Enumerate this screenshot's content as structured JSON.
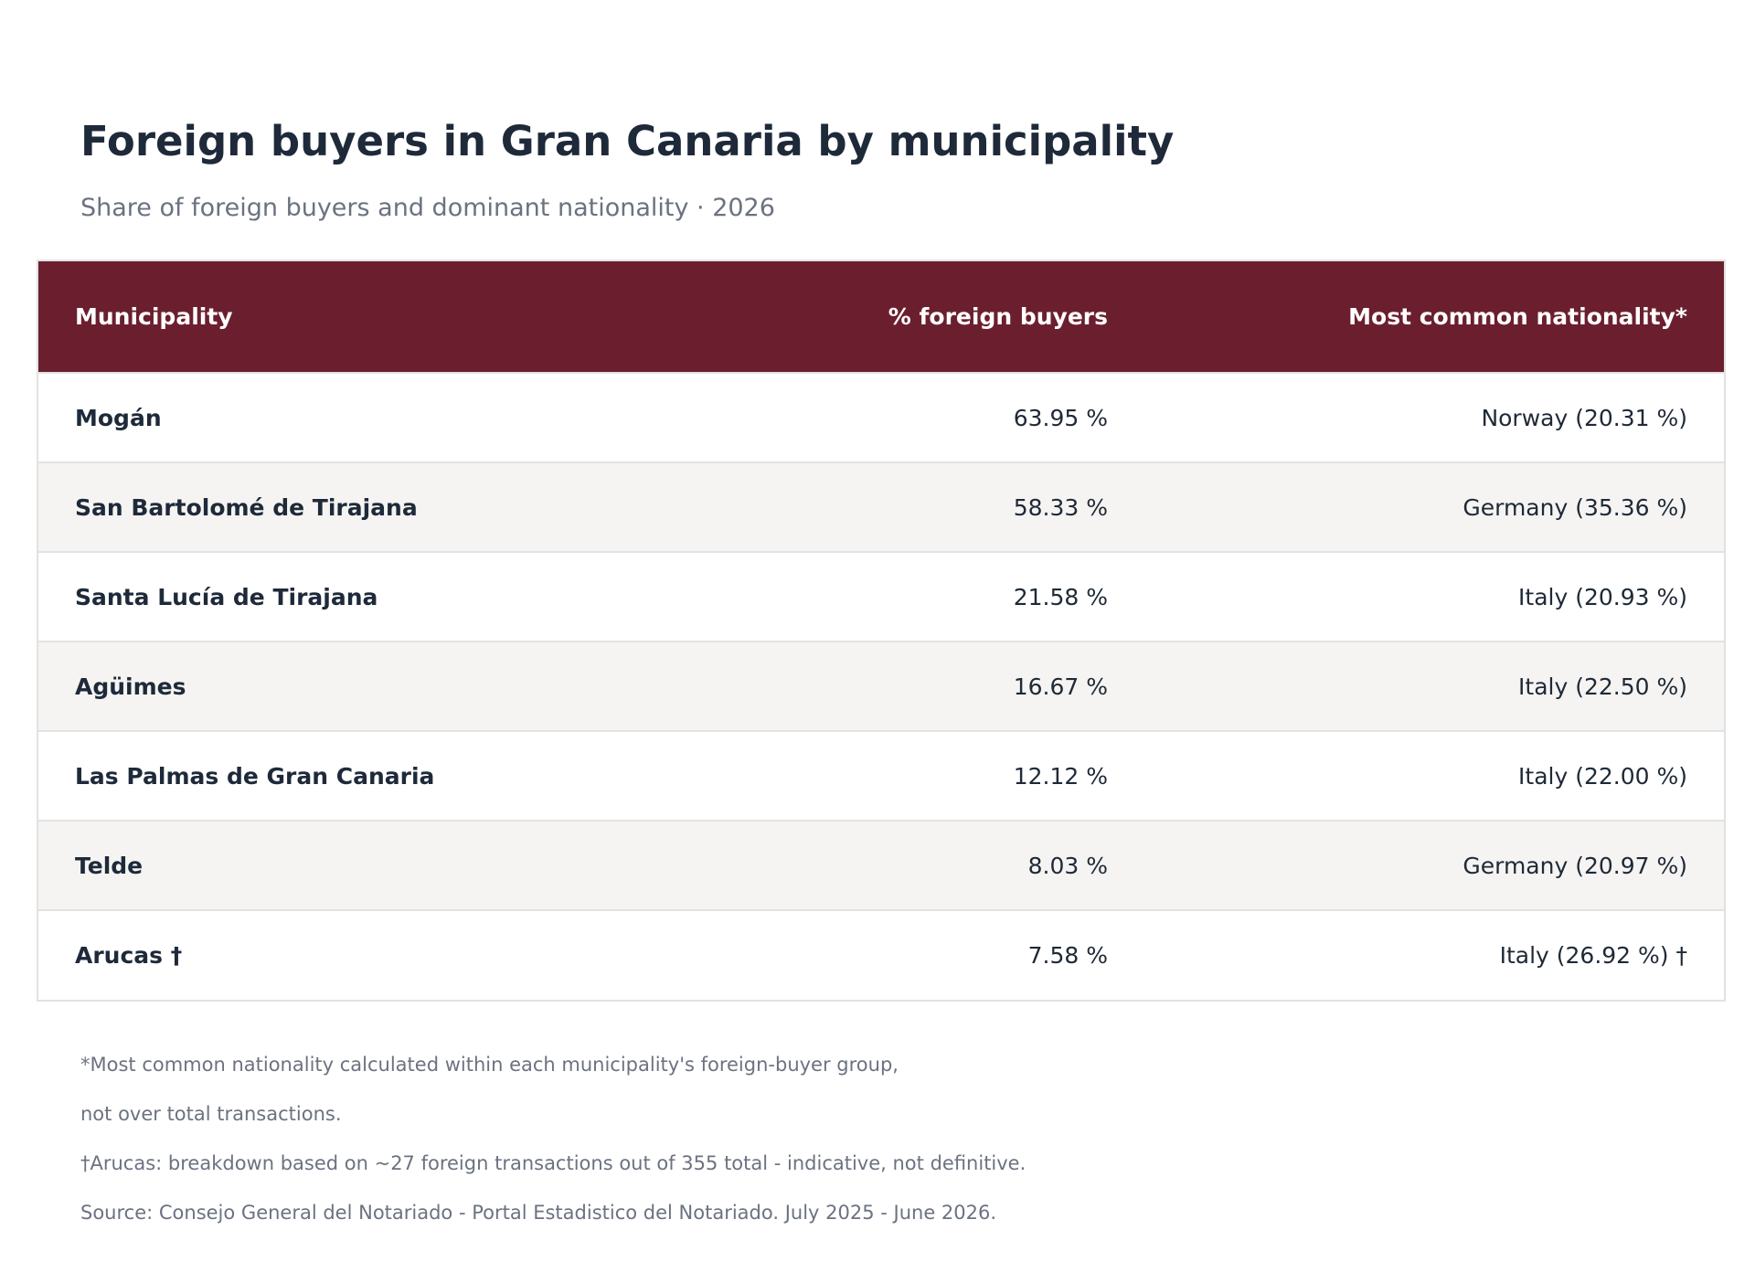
{
  "header": {
    "title": "Foreign buyers in Gran Canaria by municipality",
    "subtitle": "Share of foreign buyers and dominant nationality · 2026"
  },
  "table": {
    "columns": [
      "Municipality",
      "% foreign buyers",
      "Most common nationality*"
    ],
    "rows": [
      {
        "municipality": "Mogán",
        "foreign": "63.95 %",
        "nationality": "Norway (20.31 %)"
      },
      {
        "municipality": "San Bartolomé de Tirajana",
        "foreign": "58.33 %",
        "nationality": "Germany (35.36 %)"
      },
      {
        "municipality": "Santa Lucía de Tirajana",
        "foreign": "21.58 %",
        "nationality": "Italy (20.93 %)"
      },
      {
        "municipality": "Agüimes",
        "foreign": "16.67 %",
        "nationality": "Italy (22.50 %)"
      },
      {
        "municipality": "Las Palmas de Gran Canaria",
        "foreign": "12.12 %",
        "nationality": "Italy (22.00 %)"
      },
      {
        "municipality": "Telde",
        "foreign": "8.03 %",
        "nationality": "Germany (20.97 %)"
      },
      {
        "municipality": "Arucas †",
        "foreign": "7.58 %",
        "nationality": "Italy (26.92 %) †"
      }
    ]
  },
  "footnotes": [
    "*Most common nationality calculated within each municipality's foreign-buyer group,",
    "not over total transactions.",
    "†Arucas: breakdown based on ~27 foreign transactions out of 355 total - indicative, not definitive.",
    "Source: Consejo General del Notariado - Portal Estadistico del Notariado. July 2025 - June 2026."
  ],
  "colors": {
    "header_bg": "#6b1f2e",
    "title": "#1e2a3a",
    "muted": "#6b7280",
    "row_alt": "#f5f4f2"
  }
}
